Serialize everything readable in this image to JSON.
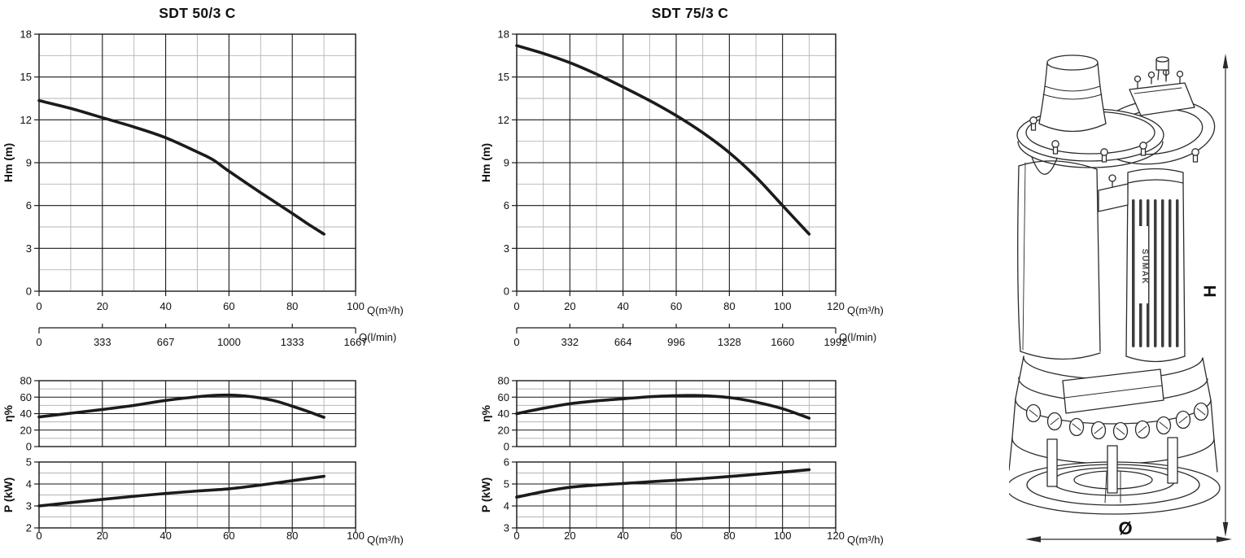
{
  "page": {
    "background": "#ffffff",
    "colors": {
      "text": "#111111",
      "curve": "#1b1b1b",
      "grid_major": "#1a1a1a",
      "grid_minor": "#b4b4b4"
    }
  },
  "drawing": {
    "height_dim_label": "H",
    "diameter_dim_label": "Ø",
    "brand_text": "SUMAK"
  },
  "chart_data": [
    {
      "type": "line",
      "title": "SDT 50/3 C",
      "secondary_axis": {
        "label": "Q(l/min)",
        "ticks": [
          0,
          333,
          667,
          1000,
          1333,
          1667
        ]
      },
      "panels": [
        {
          "id": "head",
          "ylabel": "Hm  (m)",
          "xlabel": "Q(m³/h)",
          "xlim": [
            0,
            100
          ],
          "ylim": [
            0,
            18
          ],
          "xticks": [
            0,
            20,
            40,
            60,
            80,
            100
          ],
          "yticks": [
            0,
            3,
            6,
            9,
            12,
            15,
            18
          ],
          "x_minor_step": 10,
          "y_minor_step": 1.5,
          "series": [
            {
              "name": "head",
              "x": [
                0,
                10,
                20,
                30,
                40,
                50,
                55,
                60,
                70,
                80,
                85,
                90
              ],
              "y": [
                13.35,
                12.8,
                12.15,
                11.5,
                10.75,
                9.75,
                9.2,
                8.4,
                6.9,
                5.45,
                4.7,
                4.0
              ]
            }
          ]
        },
        {
          "id": "efficiency",
          "ylabel": "η%",
          "xlim": [
            0,
            100
          ],
          "ylim": [
            0,
            80
          ],
          "xticks": [
            0,
            20,
            40,
            60,
            80,
            100
          ],
          "yticks": [
            0,
            20,
            40,
            60,
            80
          ],
          "x_minor_step": 10,
          "y_minor_step": 10,
          "series": [
            {
              "name": "efficiency",
              "x": [
                0,
                10,
                20,
                30,
                40,
                50,
                55,
                60,
                65,
                70,
                75,
                80,
                85,
                90
              ],
              "y": [
                36,
                40.5,
                45,
                50,
                56,
                60.5,
                62,
                62.5,
                61.5,
                59,
                55,
                49,
                42.5,
                35.5
              ]
            }
          ]
        },
        {
          "id": "power",
          "ylabel": "P  (kW)",
          "xlabel": "Q(m³/h)",
          "xlim": [
            0,
            100
          ],
          "ylim": [
            2,
            5
          ],
          "xticks": [
            0,
            20,
            40,
            60,
            80,
            100
          ],
          "yticks": [
            2,
            3,
            4,
            5
          ],
          "x_minor_step": 10,
          "y_minor_step": 0.5,
          "series": [
            {
              "name": "power",
              "x": [
                0,
                10,
                20,
                30,
                40,
                50,
                60,
                70,
                80,
                90
              ],
              "y": [
                3.0,
                3.15,
                3.3,
                3.44,
                3.57,
                3.68,
                3.78,
                3.95,
                4.15,
                4.35
              ]
            }
          ]
        }
      ]
    },
    {
      "type": "line",
      "title": "SDT 75/3 C",
      "secondary_axis": {
        "label": "Q(l/min)",
        "ticks": [
          0,
          332,
          664,
          996,
          1328,
          1660,
          1992
        ]
      },
      "panels": [
        {
          "id": "head",
          "ylabel": "Hm  (m)",
          "xlabel": "Q(m³/h)",
          "xlim": [
            0,
            120
          ],
          "ylim": [
            0,
            18
          ],
          "xticks": [
            0,
            20,
            40,
            60,
            80,
            100,
            120
          ],
          "yticks": [
            0,
            3,
            6,
            9,
            12,
            15,
            18
          ],
          "x_minor_step": 10,
          "y_minor_step": 1.5,
          "series": [
            {
              "name": "head",
              "x": [
                0,
                10,
                20,
                30,
                40,
                50,
                60,
                70,
                80,
                90,
                100,
                110
              ],
              "y": [
                17.2,
                16.65,
                16.0,
                15.2,
                14.3,
                13.35,
                12.3,
                11.1,
                9.7,
                8.0,
                6.0,
                4.0
              ]
            }
          ]
        },
        {
          "id": "efficiency",
          "ylabel": "η%",
          "xlim": [
            0,
            120
          ],
          "ylim": [
            0,
            80
          ],
          "xticks": [
            0,
            20,
            40,
            60,
            80,
            100,
            120
          ],
          "yticks": [
            0,
            20,
            40,
            60,
            80
          ],
          "x_minor_step": 10,
          "y_minor_step": 10,
          "series": [
            {
              "name": "efficiency",
              "x": [
                0,
                10,
                20,
                30,
                40,
                50,
                60,
                65,
                70,
                80,
                90,
                100,
                110
              ],
              "y": [
                40,
                46.5,
                52,
                55.5,
                58,
                60.5,
                61.8,
                62,
                61.8,
                59.5,
                54,
                46,
                34.5
              ]
            }
          ]
        },
        {
          "id": "power",
          "ylabel": "P  (kW)",
          "xlabel": "Q(m³/h)",
          "xlim": [
            0,
            120
          ],
          "ylim": [
            3,
            6
          ],
          "xticks": [
            0,
            20,
            40,
            60,
            80,
            100,
            120
          ],
          "yticks": [
            3,
            4,
            5,
            6
          ],
          "x_minor_step": 10,
          "y_minor_step": 0.5,
          "series": [
            {
              "name": "power",
              "x": [
                0,
                10,
                20,
                30,
                40,
                50,
                60,
                70,
                80,
                90,
                100,
                110
              ],
              "y": [
                4.4,
                4.65,
                4.85,
                4.95,
                5.02,
                5.1,
                5.17,
                5.25,
                5.34,
                5.44,
                5.54,
                5.65
              ]
            }
          ]
        }
      ]
    }
  ]
}
